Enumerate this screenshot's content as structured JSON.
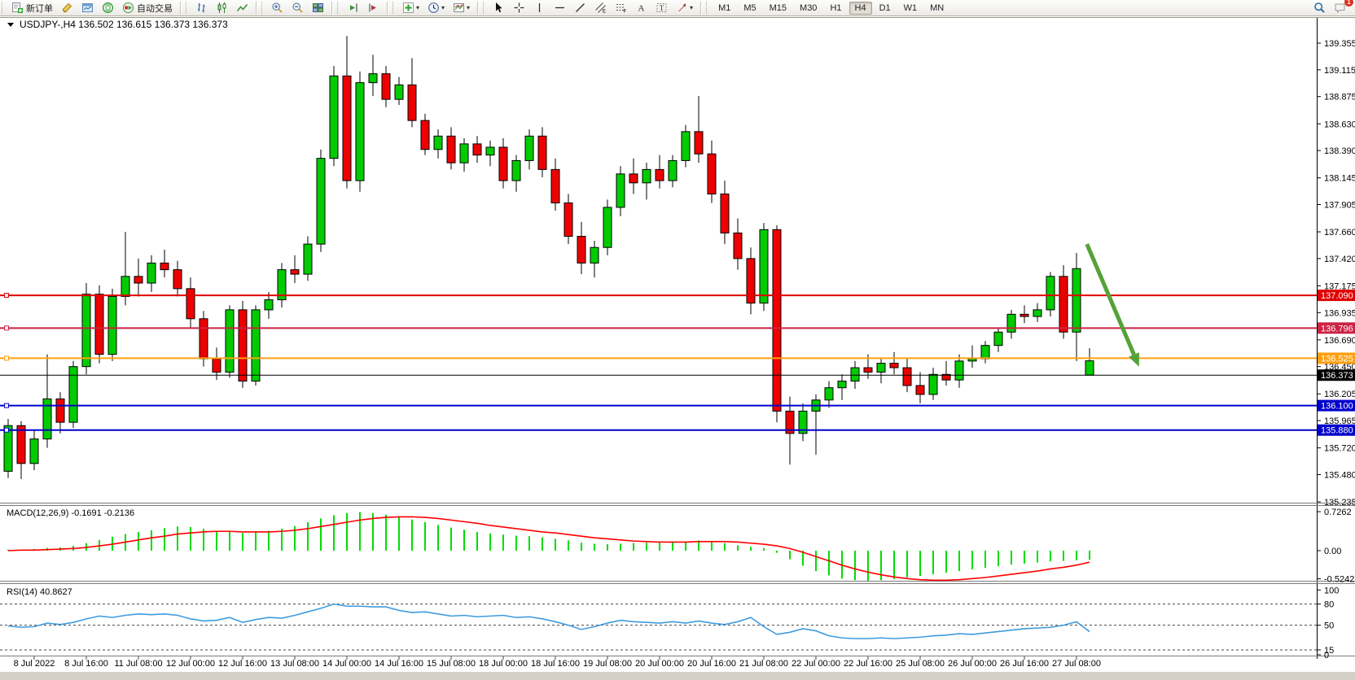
{
  "toolbar": {
    "groups": [
      {
        "name": "trade",
        "buttons": [
          {
            "name": "new-order",
            "icon": "new-order-icon",
            "label": "新订单"
          },
          {
            "name": "metaeditor",
            "icon": "metaeditor-icon"
          },
          {
            "name": "market-watch",
            "icon": "market-watch-icon"
          },
          {
            "name": "signals",
            "icon": "signals-icon"
          },
          {
            "name": "auto-trading",
            "icon": "auto-trading-icon",
            "label": "自动交易"
          }
        ]
      },
      {
        "name": "chart-type",
        "buttons": [
          {
            "name": "bar-chart",
            "icon": "bar-chart-icon"
          },
          {
            "name": "candlestick-chart",
            "icon": "candlestick-chart-icon"
          },
          {
            "name": "line-chart",
            "icon": "line-chart-icon"
          }
        ]
      },
      {
        "name": "zoom",
        "buttons": [
          {
            "name": "zoom-in",
            "icon": "zoom-in-icon"
          },
          {
            "name": "zoom-out",
            "icon": "zoom-out-icon"
          },
          {
            "name": "tile-windows",
            "icon": "tile-windows-icon"
          }
        ]
      },
      {
        "name": "scroll",
        "buttons": [
          {
            "name": "auto-scroll",
            "icon": "auto-scroll-icon"
          },
          {
            "name": "chart-shift",
            "icon": "chart-shift-icon"
          }
        ]
      },
      {
        "name": "objects",
        "buttons": [
          {
            "name": "indicators",
            "icon": "indicators-icon",
            "dropdown": true
          },
          {
            "name": "periods",
            "icon": "clock-icon",
            "dropdown": true
          },
          {
            "name": "templates",
            "icon": "templates-icon",
            "dropdown": true
          }
        ]
      },
      {
        "name": "drawing",
        "buttons": [
          {
            "name": "cursor",
            "icon": "cursor-icon"
          },
          {
            "name": "crosshair",
            "icon": "crosshair-icon"
          },
          {
            "name": "vertical-line",
            "icon": "vertical-line-icon"
          },
          {
            "name": "horizontal-line",
            "icon": "horizontal-line-icon"
          },
          {
            "name": "trendline",
            "icon": "trendline-icon"
          },
          {
            "name": "equidistant-channel",
            "icon": "channel-icon"
          },
          {
            "name": "fibonacci",
            "icon": "fibonacci-icon"
          },
          {
            "name": "text",
            "icon": "text-icon"
          },
          {
            "name": "text-label",
            "icon": "text-label-icon"
          },
          {
            "name": "arrows",
            "icon": "arrows-icon",
            "dropdown": true
          }
        ]
      }
    ],
    "timeframes": [
      "M1",
      "M5",
      "M15",
      "M30",
      "H1",
      "H4",
      "D1",
      "W1",
      "MN"
    ],
    "active_timeframe": "H4",
    "right_buttons": [
      {
        "name": "search",
        "icon": "search-icon"
      },
      {
        "name": "notifications",
        "icon": "chat-icon",
        "badge": "1"
      }
    ]
  },
  "colors": {
    "bull": "#00cc00",
    "bear": "#ee0000",
    "candle_outline": "#000000",
    "macd_hist": "#00dd00",
    "macd_signal": "#ff0000",
    "rsi_line": "#3e9bde",
    "arrow": "#55a238",
    "line_red": "#e00000",
    "line_crimson": "#cc2244",
    "line_orange": "#ffa014",
    "line_blue": "#0000cc",
    "current_price": "#000000"
  },
  "chart_data": {
    "type": "candlestick",
    "symbol": "USDJPY-",
    "timeframe": "H4",
    "title": "USDJPY-,H4  136.502 136.615 136.373 136.373",
    "ohlc": {
      "open": "136.502",
      "high": "136.615",
      "low": "136.373",
      "close": "136.373"
    },
    "y_ticks": [
      "139.355",
      "139.115",
      "138.875",
      "138.630",
      "138.390",
      "138.145",
      "137.905",
      "137.660",
      "137.420",
      "137.175",
      "136.935",
      "136.690",
      "136.450",
      "136.205",
      "135.965",
      "135.720",
      "135.480",
      "135.235"
    ],
    "price_lines": [
      {
        "price": "137.090",
        "color": "#e00000"
      },
      {
        "price": "136.796",
        "color": "#cc2244"
      },
      {
        "price": "136.525",
        "color": "#ffa014"
      },
      {
        "price": "136.100",
        "color": "#0000cc"
      },
      {
        "price": "135.880",
        "color": "#0000cc"
      }
    ],
    "current_price": {
      "price": "136.373",
      "color": "#000000"
    },
    "x_labels": [
      {
        "bar": 2,
        "text": "8 Jul 2022"
      },
      {
        "bar": 6,
        "text": "8 Jul 16:00"
      },
      {
        "bar": 10,
        "text": "11 Jul 08:00"
      },
      {
        "bar": 14,
        "text": "12 Jul 00:00"
      },
      {
        "bar": 18,
        "text": "12 Jul 16:00"
      },
      {
        "bar": 22,
        "text": "13 Jul 08:00"
      },
      {
        "bar": 26,
        "text": "14 Jul 00:00"
      },
      {
        "bar": 30,
        "text": "14 Jul 16:00"
      },
      {
        "bar": 34,
        "text": "15 Jul 08:00"
      },
      {
        "bar": 38,
        "text": "18 Jul 00:00"
      },
      {
        "bar": 42,
        "text": "18 Jul 16:00"
      },
      {
        "bar": 46,
        "text": "19 Jul 08:00"
      },
      {
        "bar": 50,
        "text": "20 Jul 00:00"
      },
      {
        "bar": 54,
        "text": "20 Jul 16:00"
      },
      {
        "bar": 58,
        "text": "21 Jul 08:00"
      },
      {
        "bar": 62,
        "text": "22 Jul 00:00"
      },
      {
        "bar": 66,
        "text": "22 Jul 16:00"
      },
      {
        "bar": 70,
        "text": "25 Jul 08:00"
      },
      {
        "bar": 74,
        "text": "26 Jul 00:00"
      },
      {
        "bar": 78,
        "text": "26 Jul 16:00"
      },
      {
        "bar": 82,
        "text": "27 Jul 08:00"
      }
    ],
    "candles": [
      [
        135.51,
        135.98,
        135.45,
        135.92
      ],
      [
        135.92,
        135.96,
        135.44,
        135.58
      ],
      [
        135.58,
        135.88,
        135.52,
        135.8
      ],
      [
        135.8,
        136.56,
        135.72,
        136.16
      ],
      [
        136.16,
        136.22,
        135.85,
        135.95
      ],
      [
        135.95,
        136.5,
        135.9,
        136.45
      ],
      [
        136.45,
        137.2,
        136.38,
        137.1
      ],
      [
        137.1,
        137.18,
        136.48,
        136.56
      ],
      [
        136.56,
        137.15,
        136.5,
        137.08
      ],
      [
        137.08,
        137.66,
        137.0,
        137.26
      ],
      [
        137.26,
        137.42,
        137.08,
        137.2
      ],
      [
        137.2,
        137.45,
        137.12,
        137.38
      ],
      [
        137.38,
        137.5,
        137.25,
        137.32
      ],
      [
        137.32,
        137.4,
        137.08,
        137.15
      ],
      [
        137.15,
        137.25,
        136.8,
        136.88
      ],
      [
        136.88,
        136.95,
        136.45,
        136.52
      ],
      [
        136.52,
        136.62,
        136.33,
        136.4
      ],
      [
        136.4,
        137.0,
        136.35,
        136.96
      ],
      [
        136.96,
        137.04,
        136.26,
        136.32
      ],
      [
        136.32,
        137.0,
        136.28,
        136.96
      ],
      [
        136.96,
        137.12,
        136.88,
        137.05
      ],
      [
        137.05,
        137.38,
        136.98,
        137.32
      ],
      [
        137.32,
        137.45,
        137.2,
        137.28
      ],
      [
        137.28,
        137.62,
        137.22,
        137.55
      ],
      [
        137.55,
        138.4,
        137.48,
        138.32
      ],
      [
        138.32,
        139.15,
        138.25,
        139.06
      ],
      [
        139.06,
        139.42,
        138.05,
        138.12
      ],
      [
        138.12,
        139.1,
        138.02,
        139.0
      ],
      [
        139.0,
        139.25,
        138.88,
        139.08
      ],
      [
        139.08,
        139.15,
        138.78,
        138.85
      ],
      [
        138.85,
        139.05,
        138.8,
        138.98
      ],
      [
        138.98,
        139.22,
        138.6,
        138.66
      ],
      [
        138.66,
        138.72,
        138.35,
        138.4
      ],
      [
        138.4,
        138.58,
        138.32,
        138.52
      ],
      [
        138.52,
        138.6,
        138.22,
        138.28
      ],
      [
        138.28,
        138.5,
        138.2,
        138.45
      ],
      [
        138.45,
        138.52,
        138.28,
        138.35
      ],
      [
        138.35,
        138.48,
        138.25,
        138.42
      ],
      [
        138.42,
        138.5,
        138.05,
        138.12
      ],
      [
        138.12,
        138.35,
        138.02,
        138.3
      ],
      [
        138.3,
        138.58,
        138.22,
        138.52
      ],
      [
        138.52,
        138.6,
        138.15,
        138.22
      ],
      [
        138.22,
        138.32,
        137.85,
        137.92
      ],
      [
        137.92,
        138.0,
        137.55,
        137.62
      ],
      [
        137.62,
        137.75,
        137.28,
        137.38
      ],
      [
        137.38,
        137.58,
        137.25,
        137.52
      ],
      [
        137.52,
        137.95,
        137.45,
        137.88
      ],
      [
        137.88,
        138.25,
        137.8,
        138.18
      ],
      [
        138.18,
        138.32,
        138.0,
        138.1
      ],
      [
        138.1,
        138.28,
        137.95,
        138.22
      ],
      [
        138.22,
        138.35,
        138.05,
        138.12
      ],
      [
        138.12,
        138.35,
        138.06,
        138.3
      ],
      [
        138.3,
        138.62,
        138.24,
        138.56
      ],
      [
        138.56,
        138.88,
        138.28,
        138.36
      ],
      [
        138.36,
        138.48,
        137.92,
        138.0
      ],
      [
        138.0,
        138.12,
        137.55,
        137.65
      ],
      [
        137.65,
        137.78,
        137.32,
        137.42
      ],
      [
        137.42,
        137.52,
        136.92,
        137.02
      ],
      [
        137.02,
        137.74,
        136.95,
        137.68
      ],
      [
        137.68,
        137.72,
        135.95,
        136.05
      ],
      [
        136.05,
        136.18,
        135.57,
        135.85
      ],
      [
        135.85,
        136.12,
        135.78,
        136.05
      ],
      [
        136.05,
        136.2,
        135.66,
        136.15
      ],
      [
        136.15,
        136.32,
        136.08,
        136.26
      ],
      [
        136.26,
        136.38,
        136.15,
        136.32
      ],
      [
        136.32,
        136.5,
        136.25,
        136.44
      ],
      [
        136.44,
        136.56,
        136.34,
        136.4
      ],
      [
        136.4,
        136.52,
        136.3,
        136.48
      ],
      [
        136.48,
        136.58,
        136.38,
        136.44
      ],
      [
        136.44,
        136.52,
        136.22,
        136.28
      ],
      [
        136.28,
        136.4,
        136.12,
        136.2
      ],
      [
        136.2,
        136.44,
        136.15,
        136.38
      ],
      [
        136.38,
        136.5,
        136.28,
        136.33
      ],
      [
        136.33,
        136.56,
        136.26,
        136.5
      ],
      [
        136.5,
        136.64,
        136.44,
        136.52
      ],
      [
        136.52,
        136.68,
        136.48,
        136.64
      ],
      [
        136.64,
        136.8,
        136.58,
        136.76
      ],
      [
        136.76,
        136.96,
        136.7,
        136.92
      ],
      [
        136.92,
        137.0,
        136.84,
        136.9
      ],
      [
        136.9,
        137.02,
        136.85,
        136.96
      ],
      [
        136.96,
        137.3,
        136.9,
        137.26
      ],
      [
        137.26,
        137.36,
        136.7,
        136.76
      ],
      [
        136.76,
        137.47,
        136.5,
        137.33
      ],
      [
        136.502,
        136.615,
        136.373,
        136.373,
        "g"
      ]
    ],
    "macd": {
      "label": "MACD(12,26,9) -0.1691 -0.2136",
      "fast": 12,
      "slow": 26,
      "signal_period": 9,
      "value": "-0.1691",
      "signal_value": "-0.2136",
      "ticks": [
        "0.7262",
        "0.00",
        "-0.5242"
      ],
      "histogram": [
        0.02,
        0.02,
        0.03,
        0.05,
        0.06,
        0.09,
        0.14,
        0.2,
        0.26,
        0.31,
        0.35,
        0.38,
        0.42,
        0.45,
        0.44,
        0.41,
        0.37,
        0.35,
        0.33,
        0.34,
        0.37,
        0.41,
        0.46,
        0.53,
        0.6,
        0.66,
        0.7,
        0.72,
        0.7,
        0.67,
        0.63,
        0.58,
        0.53,
        0.48,
        0.43,
        0.39,
        0.35,
        0.32,
        0.3,
        0.28,
        0.27,
        0.25,
        0.22,
        0.19,
        0.15,
        0.13,
        0.12,
        0.13,
        0.14,
        0.15,
        0.15,
        0.16,
        0.17,
        0.19,
        0.17,
        0.14,
        0.1,
        0.07,
        0.05,
        -0.04,
        -0.16,
        -0.28,
        -0.38,
        -0.46,
        -0.52,
        -0.55,
        -0.56,
        -0.55,
        -0.53,
        -0.5,
        -0.47,
        -0.44,
        -0.41,
        -0.38,
        -0.35,
        -0.32,
        -0.29,
        -0.26,
        -0.24,
        -0.22,
        -0.2,
        -0.19,
        -0.18,
        -0.1691
      ],
      "signal": [
        0.0,
        0.01,
        0.01,
        0.02,
        0.03,
        0.04,
        0.06,
        0.09,
        0.12,
        0.16,
        0.2,
        0.24,
        0.27,
        0.31,
        0.33,
        0.35,
        0.36,
        0.36,
        0.35,
        0.35,
        0.35,
        0.36,
        0.38,
        0.41,
        0.45,
        0.49,
        0.53,
        0.57,
        0.6,
        0.62,
        0.63,
        0.63,
        0.62,
        0.6,
        0.57,
        0.54,
        0.51,
        0.47,
        0.44,
        0.41,
        0.38,
        0.35,
        0.33,
        0.3,
        0.27,
        0.24,
        0.22,
        0.2,
        0.18,
        0.17,
        0.16,
        0.16,
        0.16,
        0.17,
        0.17,
        0.17,
        0.16,
        0.14,
        0.12,
        0.09,
        0.04,
        -0.03,
        -0.11,
        -0.19,
        -0.27,
        -0.34,
        -0.4,
        -0.45,
        -0.49,
        -0.52,
        -0.54,
        -0.55,
        -0.55,
        -0.54,
        -0.52,
        -0.5,
        -0.47,
        -0.44,
        -0.41,
        -0.38,
        -0.34,
        -0.31,
        -0.27,
        -0.2136
      ]
    },
    "rsi": {
      "label": "RSI(14) 40.8627",
      "period": 14,
      "value": "40.8627",
      "levels": [
        "100",
        "80",
        "50",
        "15",
        "0"
      ],
      "dashed_levels": [
        80,
        50,
        15
      ],
      "series": [
        49,
        47,
        48,
        53,
        51,
        54,
        59,
        63,
        61,
        64,
        66,
        65,
        66,
        64,
        59,
        56,
        57,
        61,
        54,
        58,
        61,
        60,
        64,
        69,
        74,
        80,
        77,
        77,
        76,
        76,
        71,
        68,
        69,
        66,
        63,
        64,
        62,
        63,
        64,
        61,
        62,
        59,
        55,
        50,
        44,
        48,
        53,
        57,
        55,
        54,
        53,
        55,
        53,
        56,
        53,
        51,
        55,
        61,
        48,
        37,
        40,
        45,
        42,
        35,
        32,
        31,
        31,
        32,
        31,
        32,
        33,
        35,
        36,
        38,
        37,
        39,
        41,
        43,
        45,
        46,
        47,
        50,
        55,
        40.8627
      ]
    },
    "annotation_arrow": {
      "from_bar": 82.8,
      "from_price": 137.55,
      "to_bar": 86.8,
      "to_price": 136.45,
      "color": "#55a238"
    }
  }
}
